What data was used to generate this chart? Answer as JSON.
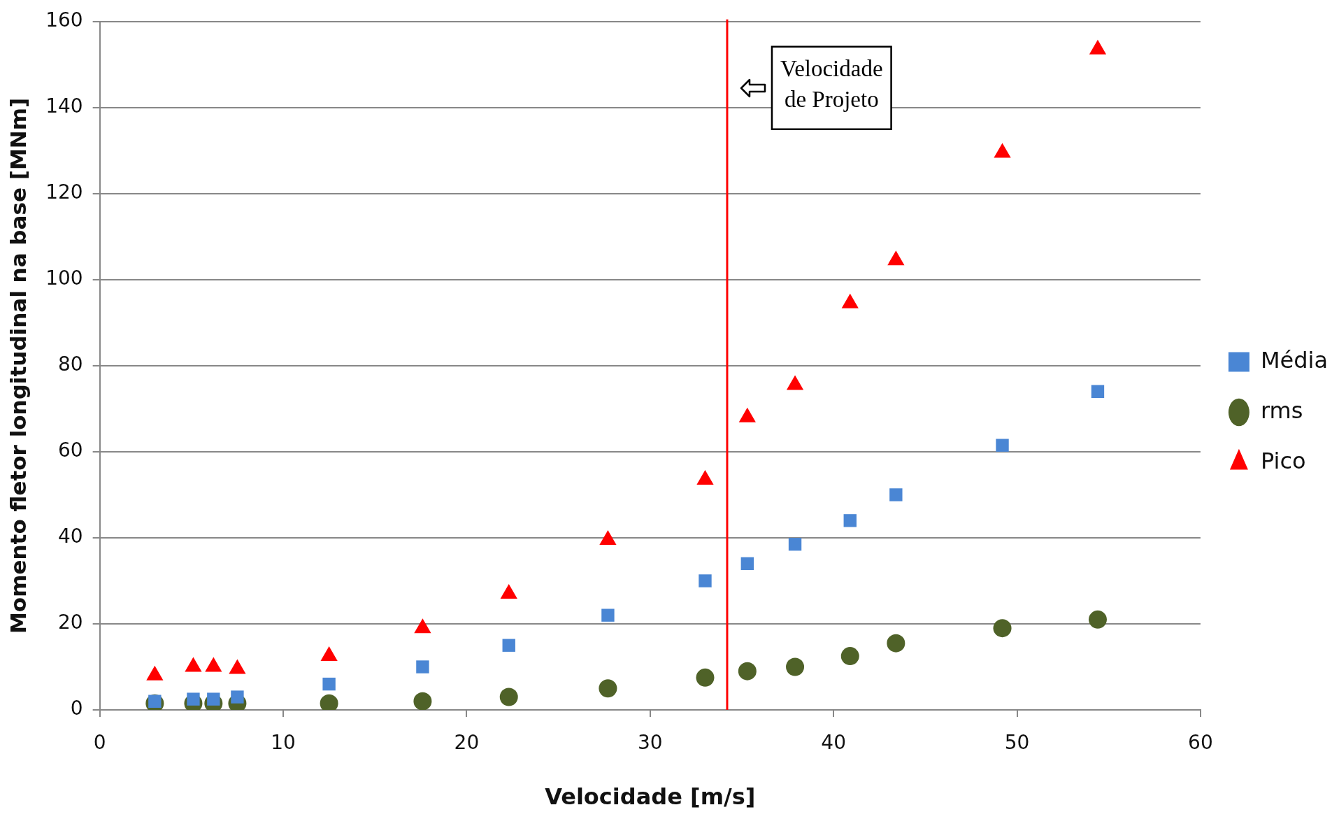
{
  "chart_data": {
    "type": "scatter",
    "xlabel": "Velocidade [m/s]",
    "ylabel": "Momento fletor longitudinal na base [MNm]",
    "x": [
      3.0,
      5.1,
      6.2,
      7.5,
      12.5,
      17.6,
      22.3,
      27.7,
      33.0,
      35.3,
      37.9,
      40.9,
      43.4,
      49.2,
      54.4
    ],
    "series": [
      {
        "name": "Média",
        "color": "#4a86d4",
        "marker": "square",
        "values": [
          2,
          2.5,
          2.5,
          3,
          6,
          10,
          15,
          22,
          30,
          34,
          38.5,
          44,
          50,
          61.5,
          74
        ]
      },
      {
        "name": "rms",
        "color": "#4f6228",
        "marker": "circle",
        "values": [
          1.5,
          1.5,
          1.5,
          1.5,
          1.5,
          2,
          3,
          5,
          7.5,
          9,
          10,
          12.5,
          15.5,
          19,
          21
        ]
      },
      {
        "name": "Pico",
        "color": "#ff0000",
        "marker": "triangle",
        "values": [
          8,
          10,
          10,
          9.5,
          12.5,
          19,
          27,
          39.5,
          53.5,
          68,
          75.5,
          94.5,
          104.5,
          129.5,
          153.5
        ]
      }
    ],
    "xlim": [
      0,
      60
    ],
    "xticks": [
      0,
      10,
      20,
      30,
      40,
      50,
      60
    ],
    "ylim": [
      0,
      160
    ],
    "yticks": [
      0,
      20,
      40,
      60,
      80,
      100,
      120,
      140,
      160
    ],
    "grid": "y",
    "legend": "right",
    "ref_lines": [
      {
        "axis": "x",
        "value": 34.2,
        "label": "Velocidade de Projeto",
        "color": "#ff0000"
      }
    ]
  }
}
